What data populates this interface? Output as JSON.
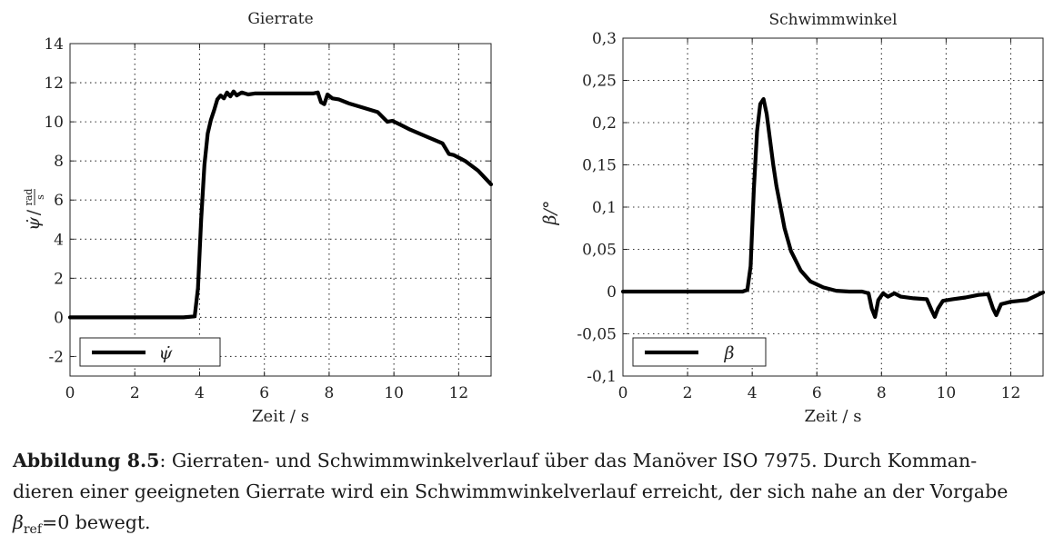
{
  "chart_data": [
    {
      "type": "line",
      "title": "Gierrate",
      "xlabel": "Zeit / s",
      "ylabel": "ψ̇ / rad/s",
      "ylabel_sym": "ψ̇",
      "ylabel_unit_num": "rad",
      "ylabel_unit_den": "s",
      "xlim": [
        0,
        13
      ],
      "ylim": [
        -3,
        14
      ],
      "xticks": [
        0,
        2,
        4,
        6,
        8,
        10,
        12
      ],
      "xtick_labels": [
        "0",
        "2",
        "4",
        "6",
        "8",
        "10",
        "12"
      ],
      "yticks": [
        -2,
        0,
        2,
        4,
        6,
        8,
        10,
        12,
        14
      ],
      "ytick_labels": [
        "-2",
        "0",
        "2",
        "4",
        "6",
        "8",
        "10",
        "12",
        "14"
      ],
      "grid": true,
      "legend_position": "bottom-left",
      "series": [
        {
          "name": "ψ̇",
          "x": [
            0,
            3.5,
            3.85,
            3.95,
            4.05,
            4.15,
            4.25,
            4.35,
            4.45,
            4.55,
            4.65,
            4.75,
            4.85,
            4.95,
            5.05,
            5.15,
            5.3,
            5.5,
            5.7,
            6.0,
            6.5,
            7.0,
            7.5,
            7.65,
            7.75,
            7.85,
            7.95,
            8.1,
            8.3,
            8.6,
            9.0,
            9.5,
            9.8,
            9.95,
            10.2,
            10.5,
            11.0,
            11.5,
            11.7,
            11.85,
            12.2,
            12.6,
            13.0
          ],
          "y": [
            0,
            0,
            0.05,
            1.5,
            5.0,
            7.8,
            9.4,
            10.1,
            10.6,
            11.15,
            11.35,
            11.2,
            11.5,
            11.3,
            11.55,
            11.35,
            11.5,
            11.4,
            11.45,
            11.45,
            11.45,
            11.45,
            11.45,
            11.5,
            11.0,
            10.9,
            11.4,
            11.2,
            11.15,
            10.95,
            10.75,
            10.5,
            10.0,
            10.05,
            9.85,
            9.6,
            9.25,
            8.9,
            8.35,
            8.3,
            8.0,
            7.5,
            6.8
          ]
        }
      ]
    },
    {
      "type": "line",
      "title": "Schwimmwinkel",
      "xlabel": "Zeit / s",
      "ylabel": "β/°",
      "xlim": [
        0,
        13
      ],
      "ylim": [
        -0.1,
        0.3
      ],
      "xticks": [
        0,
        2,
        4,
        6,
        8,
        10,
        12
      ],
      "xtick_labels": [
        "0",
        "2",
        "4",
        "6",
        "8",
        "10",
        "12"
      ],
      "yticks": [
        -0.1,
        -0.05,
        0,
        0.05,
        0.1,
        0.15,
        0.2,
        0.25,
        0.3
      ],
      "ytick_labels": [
        "-0,1",
        "-0,05",
        "0",
        "0,05",
        "0,1",
        "0,15",
        "0,2",
        "0,25",
        "0,3"
      ],
      "grid": true,
      "legend_position": "bottom-left",
      "series": [
        {
          "name": "β",
          "x": [
            0,
            3.7,
            3.85,
            3.95,
            4.05,
            4.15,
            4.25,
            4.35,
            4.45,
            4.55,
            4.65,
            4.75,
            4.85,
            5.0,
            5.2,
            5.5,
            5.8,
            6.2,
            6.6,
            7.0,
            7.4,
            7.6,
            7.7,
            7.8,
            7.9,
            8.05,
            8.2,
            8.4,
            8.6,
            9.0,
            9.4,
            9.55,
            9.65,
            9.75,
            9.9,
            10.2,
            10.6,
            11.0,
            11.3,
            11.45,
            11.55,
            11.7,
            12.0,
            12.5,
            13.0
          ],
          "y": [
            0,
            0,
            0.002,
            0.03,
            0.12,
            0.19,
            0.222,
            0.228,
            0.21,
            0.18,
            0.15,
            0.125,
            0.105,
            0.075,
            0.048,
            0.025,
            0.012,
            0.005,
            0.001,
            0.0,
            0.0,
            -0.002,
            -0.02,
            -0.03,
            -0.01,
            -0.002,
            -0.006,
            -0.002,
            -0.006,
            -0.008,
            -0.009,
            -0.022,
            -0.03,
            -0.02,
            -0.011,
            -0.009,
            -0.007,
            -0.004,
            -0.003,
            -0.02,
            -0.028,
            -0.015,
            -0.012,
            -0.01,
            -0.001
          ]
        }
      ]
    }
  ],
  "caption": {
    "label": "Abbildung 8.5",
    "text_line1": ": Gierraten- und Schwimmwinkelverlauf über das Manöver ISO 7975. Durch Komman-",
    "text_line2": "dieren einer geeigneten Gierrate wird ein Schwimmwinkelverlauf erreicht, der sich nahe an der Vorgabe",
    "beta_symbol": "β",
    "beta_sub": "ref",
    "text_line3": "=0 bewegt."
  }
}
